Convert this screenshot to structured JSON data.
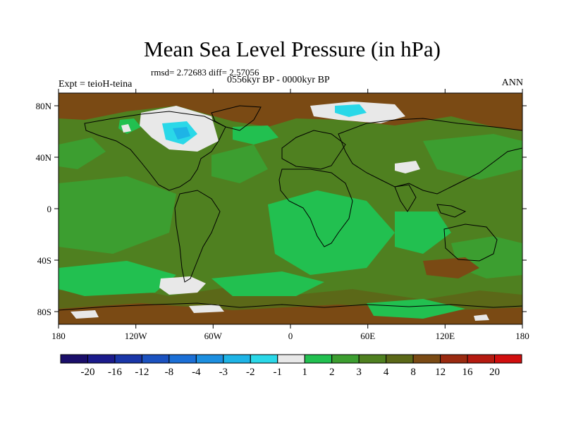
{
  "title": "Mean Sea Level Pressure (in hPa)",
  "stats": "rmsd= 2.72683 diff= 2.57056",
  "experiment": "Expt = teioH-teina",
  "period": "0556kyr BP - 0000kyr BP",
  "season": "ANN",
  "lat_labels": [
    "80N",
    "40N",
    "0",
    "40S",
    "80S"
  ],
  "lon_labels": [
    "180",
    "120W",
    "60W",
    "0",
    "60E",
    "120E",
    "180"
  ],
  "colorbar": {
    "labels": [
      "-20",
      "-16",
      "-12",
      "-8",
      "-4",
      "-3",
      "-2",
      "-1",
      "1",
      "2",
      "3",
      "4",
      "8",
      "12",
      "16",
      "20"
    ],
    "colors": [
      "#1a0e6a",
      "#1b1b8c",
      "#1a36a8",
      "#1b52c0",
      "#1b6fd6",
      "#1c8fe0",
      "#1eb4e6",
      "#2ad8e8",
      "#e8e8e8",
      "#22c050",
      "#3c9e30",
      "#4f8020",
      "#5b6818",
      "#7a4a14",
      "#9a2a10",
      "#b51a10",
      "#d10e0e"
    ]
  },
  "colors": {
    "green_light": "#22c050",
    "green_mid": "#3c9e30",
    "olive": "#4f8020",
    "brown": "#7a4a14",
    "white": "#e8e8e8",
    "cyan": "#2ad8e8"
  }
}
